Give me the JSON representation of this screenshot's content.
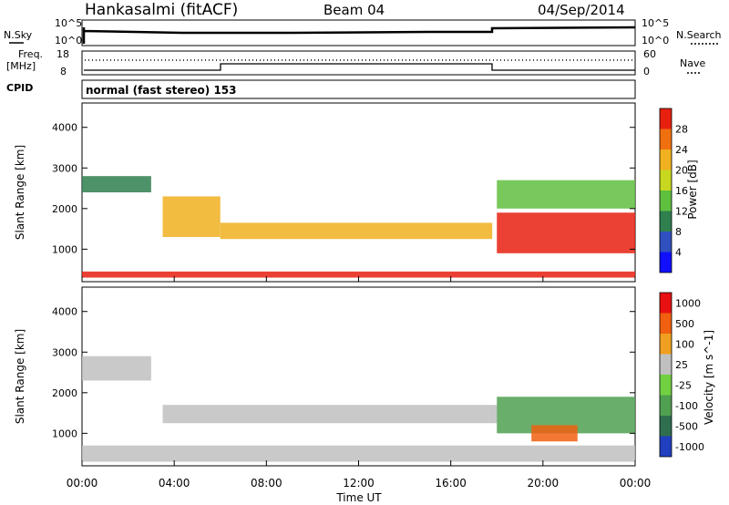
{
  "header": {
    "station": "Hankasalmi (fitACF)",
    "beam": "Beam 04",
    "date": "04/Sep/2014"
  },
  "panels": {
    "nsky_label": "N.Sky",
    "nsearch_label": "N.Search",
    "freq_label_1": "Freq.",
    "freq_label_2": "[MHz]",
    "nave_label": "Nave",
    "cpid_label": "CPID",
    "cpid_text": "normal (fast stereo) 153",
    "noise_ticks": [
      "10^5",
      "10^0"
    ],
    "freq_ticks": [
      "18",
      "8"
    ],
    "nave_ticks": [
      "60",
      "0"
    ]
  },
  "chart_data": [
    {
      "type": "heatmap",
      "name": "power",
      "ylabel": "Slant Range [km]",
      "xlabel": "",
      "x_ticks": [
        "00:00",
        "04:00",
        "08:00",
        "12:00",
        "16:00",
        "20:00",
        "00:00"
      ],
      "y_ticks": [
        1000,
        2000,
        3000,
        4000
      ],
      "ylim": [
        200,
        4600
      ],
      "xlim_hours": [
        0,
        24
      ],
      "colorbar": {
        "label": "Power [dB]",
        "ticks": [
          "4",
          "8",
          "12",
          "16",
          "20",
          "24",
          "28"
        ],
        "range": [
          0,
          30
        ],
        "colors": [
          "#1010ff",
          "#3050c0",
          "#2f7f4f",
          "#5fc040",
          "#c8d820",
          "#f0b020",
          "#f07010",
          "#e82010"
        ]
      },
      "bands": [
        {
          "t0": 0.0,
          "t1": 3.0,
          "r0": 2400,
          "r1": 2800,
          "level": 2
        },
        {
          "t0": 0.0,
          "t1": 24.0,
          "r0": 300,
          "r1": 450,
          "level": 7
        },
        {
          "t0": 3.5,
          "t1": 6.0,
          "r0": 1300,
          "r1": 2300,
          "level": 5
        },
        {
          "t0": 6.0,
          "t1": 17.8,
          "r0": 1250,
          "r1": 1650,
          "level": 5
        },
        {
          "t0": 18.0,
          "t1": 24.0,
          "r0": 900,
          "r1": 1900,
          "level": 7
        },
        {
          "t0": 18.0,
          "t1": 24.0,
          "r0": 2000,
          "r1": 2700,
          "level": 3
        }
      ]
    },
    {
      "type": "heatmap",
      "name": "velocity",
      "ylabel": "Slant Range [km]",
      "xlabel": "Time UT",
      "x_ticks": [
        "00:00",
        "04:00",
        "08:00",
        "12:00",
        "16:00",
        "20:00",
        "00:00"
      ],
      "y_ticks": [
        1000,
        2000,
        3000,
        4000
      ],
      "ylim": [
        200,
        4600
      ],
      "xlim_hours": [
        0,
        24
      ],
      "colorbar": {
        "label": "Velocity [m s^-1]",
        "ticks": [
          "1000",
          "500",
          "100",
          "25",
          "-25",
          "-100",
          "-500",
          "-1000"
        ],
        "colors": [
          "#2040c0",
          "#2f6f4f",
          "#4fa050",
          "#70d040",
          "#c0c0c0",
          "#f0a020",
          "#f06010",
          "#e81010"
        ]
      },
      "bands": [
        {
          "t0": 0.0,
          "t1": 3.0,
          "r0": 2300,
          "r1": 2900,
          "level": 4
        },
        {
          "t0": 0.0,
          "t1": 24.0,
          "r0": 300,
          "r1": 700,
          "level": 4
        },
        {
          "t0": 3.5,
          "t1": 18.0,
          "r0": 1250,
          "r1": 1700,
          "level": 4
        },
        {
          "t0": 18.0,
          "t1": 24.0,
          "r0": 1000,
          "r1": 1900,
          "level": 2
        },
        {
          "t0": 19.5,
          "t1": 21.5,
          "r0": 800,
          "r1": 1200,
          "level": 6
        }
      ]
    }
  ]
}
